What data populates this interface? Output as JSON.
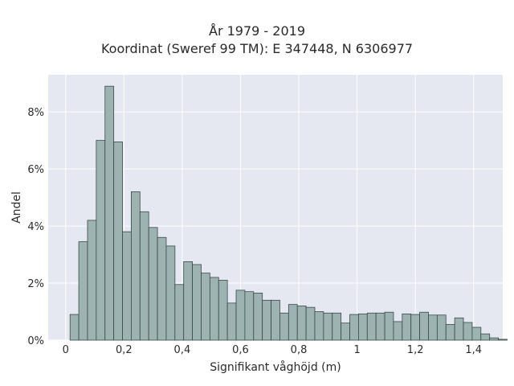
{
  "chart_data": {
    "type": "bar",
    "title_line1": "År 1979 - 2019",
    "title_line2": "Koordinat (Sweref 99 TM): E 347448, N 6306977",
    "xlabel": "Signifikant våghöjd (m)",
    "ylabel": "Andel",
    "xlim": [
      -0.06,
      1.5
    ],
    "ylim": [
      0,
      9.3
    ],
    "bin_width": 0.03,
    "bin_start": 0.015,
    "x_ticks": [
      {
        "value": 0,
        "label": "0"
      },
      {
        "value": 0.2,
        "label": "0,2"
      },
      {
        "value": 0.4,
        "label": "0,4"
      },
      {
        "value": 0.6,
        "label": "0,6"
      },
      {
        "value": 0.8,
        "label": "0,8"
      },
      {
        "value": 1.0,
        "label": "1"
      },
      {
        "value": 1.2,
        "label": "1,2"
      },
      {
        "value": 1.4,
        "label": "1,4"
      }
    ],
    "y_ticks": [
      {
        "value": 0,
        "label": "0%"
      },
      {
        "value": 2,
        "label": "2%"
      },
      {
        "value": 4,
        "label": "4%"
      },
      {
        "value": 6,
        "label": "6%"
      },
      {
        "value": 8,
        "label": "8%"
      }
    ],
    "values": [
      0.9,
      3.45,
      4.2,
      7.0,
      8.9,
      6.95,
      3.8,
      5.2,
      4.5,
      3.95,
      3.6,
      3.3,
      1.95,
      2.75,
      2.65,
      2.35,
      2.2,
      2.1,
      1.3,
      1.75,
      1.7,
      1.65,
      1.4,
      1.4,
      0.95,
      1.25,
      1.2,
      1.15,
      1.0,
      0.95,
      0.95,
      0.6,
      0.9,
      0.92,
      0.95,
      0.95,
      0.98,
      0.65,
      0.92,
      0.9,
      0.98,
      0.88,
      0.88,
      0.55,
      0.78,
      0.62,
      0.45,
      0.22,
      0.08,
      0.03
    ],
    "grid": true,
    "colors": {
      "plot_bg": "#e5e8f0",
      "grid": "#ffffff",
      "bar_fill": "#9db3b1",
      "bar_edge": "#39484a"
    }
  }
}
